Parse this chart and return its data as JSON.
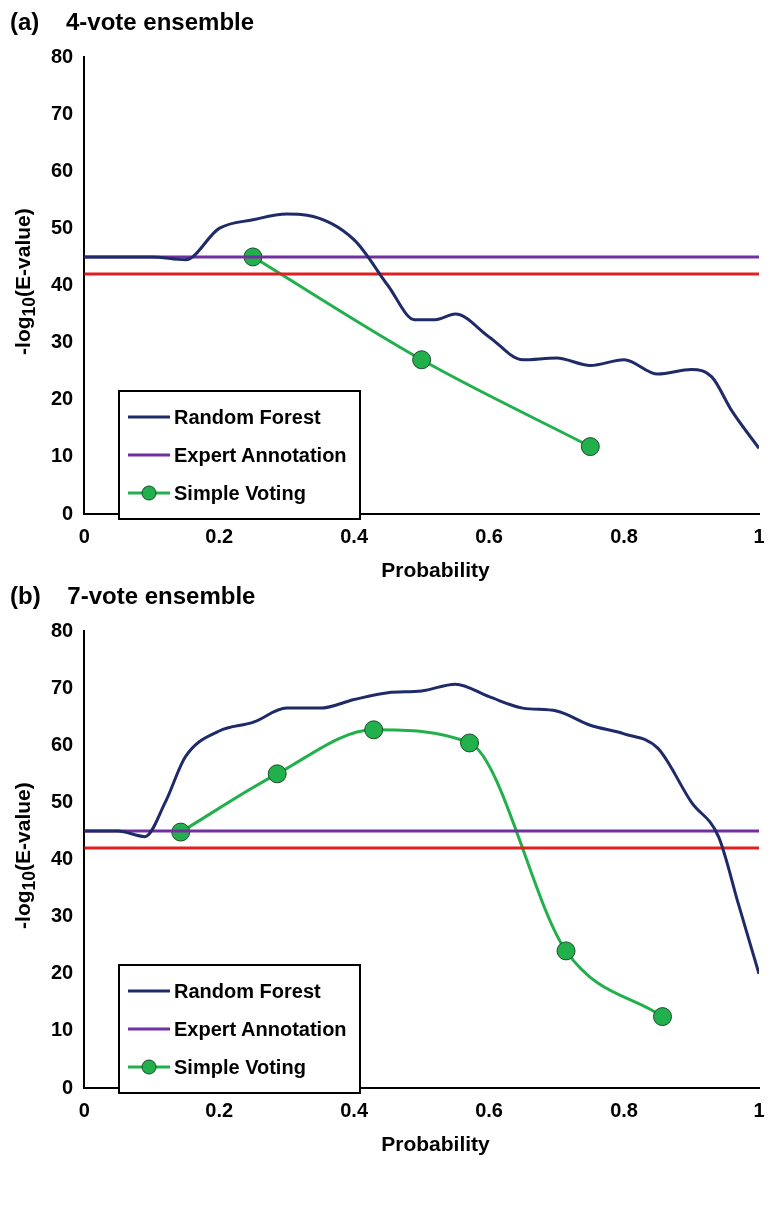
{
  "chart_data": [
    {
      "type": "line",
      "title": "(a)    4-vote ensemble",
      "xlabel": "Probability",
      "ylabel": "-log$_{10}$(E-value)",
      "xlim": [
        0,
        1
      ],
      "xticks": [
        0,
        0.2,
        0.4,
        0.6,
        0.8,
        1
      ],
      "ylim": [
        0,
        80
      ],
      "yticks": [
        0,
        10,
        20,
        30,
        40,
        50,
        60,
        70,
        80
      ],
      "grid": false,
      "legend": "bottom left",
      "series": [
        {
          "name": "Random Forest",
          "color": "#1f2a68",
          "marker": "none",
          "x": [
            0,
            0.1,
            0.15,
            0.2,
            0.25,
            0.3,
            0.33,
            0.4,
            0.45,
            0.49,
            0.52,
            0.55,
            0.6,
            0.65,
            0.7,
            0.75,
            0.8,
            0.85,
            0.9,
            0.93,
            0.96,
            1
          ],
          "values": [
            45,
            45,
            44.5,
            50,
            51.5,
            52.5,
            52.3,
            48,
            40,
            34,
            34,
            35,
            31,
            27,
            27.3,
            26,
            27,
            24.5,
            25.3,
            24,
            18,
            11.5
          ]
        },
        {
          "color": "#e02020",
          "marker": "none",
          "x": [
            0,
            1
          ],
          "values": [
            42,
            42
          ]
        },
        {
          "name": "Expert Annotation",
          "color": "#7030a0",
          "marker": "none",
          "x": [
            0,
            1
          ],
          "values": [
            45,
            45
          ]
        },
        {
          "name": "Simple Voting",
          "color": "#22b04c",
          "marker": "circle",
          "x": [
            0.25,
            0.5,
            0.75
          ],
          "values": [
            45,
            27,
            11.8
          ]
        }
      ]
    },
    {
      "type": "line",
      "title": "(b)    7-vote ensemble",
      "xlabel": "Probability",
      "ylabel": "-log$_{10}$(E-value)",
      "xlim": [
        0,
        1
      ],
      "xticks": [
        0,
        0.2,
        0.4,
        0.6,
        0.8,
        1
      ],
      "ylim": [
        0,
        80
      ],
      "yticks": [
        0,
        10,
        20,
        30,
        40,
        50,
        60,
        70,
        80
      ],
      "grid": false,
      "legend": "bottom left",
      "series": [
        {
          "name": "Random Forest",
          "color": "#1f2a68",
          "marker": "none",
          "x": [
            0,
            0.05,
            0.09,
            0.12,
            0.15,
            0.2,
            0.25,
            0.3,
            0.35,
            0.4,
            0.45,
            0.5,
            0.55,
            0.6,
            0.65,
            0.7,
            0.75,
            0.8,
            0.85,
            0.9,
            0.94,
            0.97,
            1
          ],
          "values": [
            45,
            45,
            44,
            50,
            58,
            62.5,
            64,
            66.5,
            66.5,
            68,
            69.2,
            69.5,
            70.7,
            68.5,
            66.5,
            66,
            63.5,
            62,
            59.5,
            50,
            44,
            32,
            20
          ]
        },
        {
          "color": "#e02020",
          "marker": "none",
          "x": [
            0,
            1
          ],
          "values": [
            42,
            42
          ]
        },
        {
          "name": "Expert Annotation",
          "color": "#7030a0",
          "marker": "none",
          "x": [
            0,
            1
          ],
          "values": [
            45,
            45
          ]
        },
        {
          "name": "Simple Voting",
          "color": "#22b04c",
          "marker": "circle",
          "x": [
            0.143,
            0.286,
            0.429,
            0.571,
            0.714,
            0.857
          ],
          "values": [
            44.8,
            55,
            62.7,
            60.4,
            24,
            12.5
          ]
        }
      ]
    }
  ]
}
